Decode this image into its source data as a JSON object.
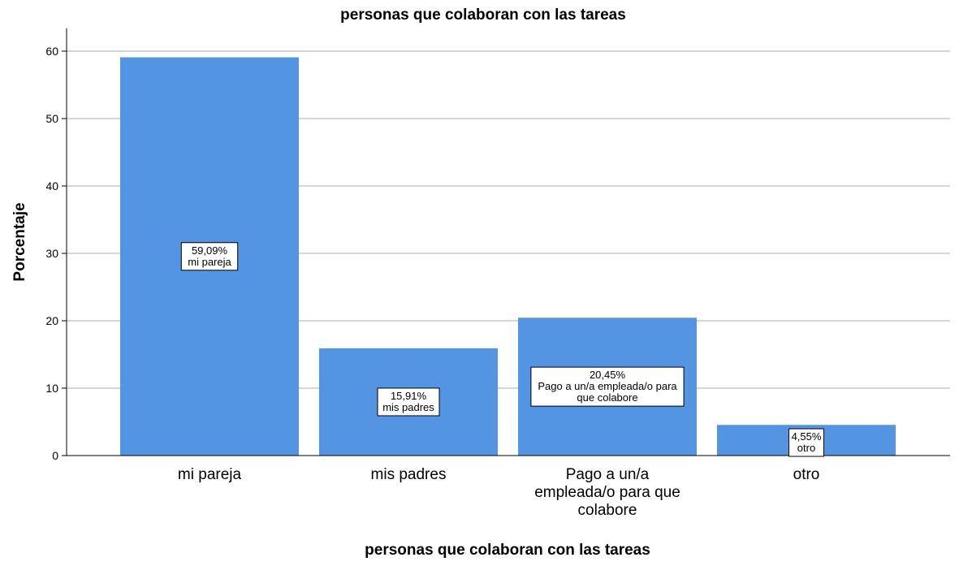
{
  "chart_data": {
    "type": "bar",
    "title": "personas que colaboran con las tareas",
    "xlabel": "personas que colaboran con las tareas",
    "ylabel": "Porcentaje",
    "ylim": [
      0,
      62
    ],
    "yticks": [
      "0",
      "10",
      "20",
      "30",
      "40",
      "50",
      "60"
    ],
    "grid": true,
    "bar_color": "#5394e3",
    "categories": [
      [
        "mi pareja"
      ],
      [
        "mis padres"
      ],
      [
        "Pago a un/a",
        "empleada/o para que",
        "colabore"
      ],
      [
        "otro"
      ]
    ],
    "values": [
      59.09,
      15.91,
      20.45,
      4.55
    ],
    "data_labels": [
      [
        "59,09%",
        "mi pareja"
      ],
      [
        "15,91%",
        "mis padres"
      ],
      [
        "20,45%",
        "Pago a un/a empleada/o para",
        "que colabore"
      ],
      [
        "4,55%",
        "otro"
      ]
    ]
  }
}
